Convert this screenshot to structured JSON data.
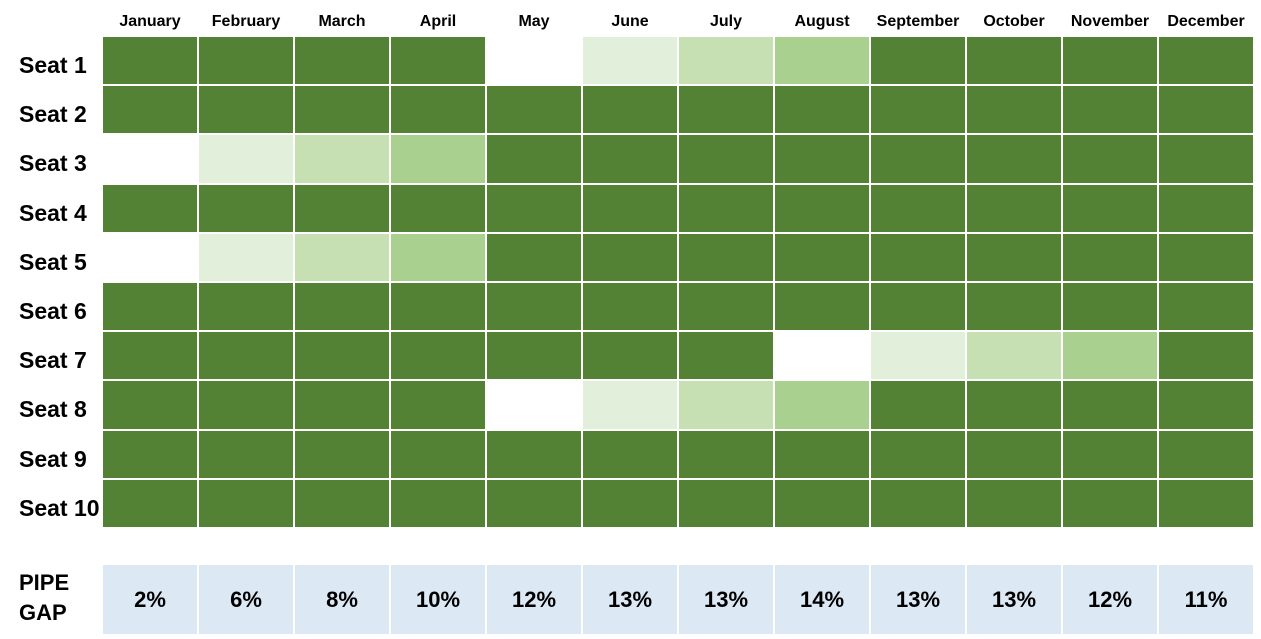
{
  "chart_data": {
    "type": "heatmap",
    "title": "",
    "columns": [
      "January",
      "February",
      "March",
      "April",
      "May",
      "June",
      "July",
      "August",
      "September",
      "October",
      "November",
      "December"
    ],
    "rows": [
      "Seat 1",
      "Seat 2",
      "Seat 3",
      "Seat 4",
      "Seat 5",
      "Seat 6",
      "Seat 7",
      "Seat 8",
      "Seat 9",
      "Seat 10"
    ],
    "levels": {
      "0": "#ffffff",
      "1": "#e2efda",
      "2": "#c6e0b4",
      "3": "#a9d08e",
      "4": "#548235"
    },
    "values": [
      [
        4,
        4,
        4,
        4,
        0,
        1,
        2,
        3,
        4,
        4,
        4,
        4
      ],
      [
        4,
        4,
        4,
        4,
        4,
        4,
        4,
        4,
        4,
        4,
        4,
        4
      ],
      [
        0,
        1,
        2,
        3,
        4,
        4,
        4,
        4,
        4,
        4,
        4,
        4
      ],
      [
        4,
        4,
        4,
        4,
        4,
        4,
        4,
        4,
        4,
        4,
        4,
        4
      ],
      [
        0,
        1,
        2,
        3,
        4,
        4,
        4,
        4,
        4,
        4,
        4,
        4
      ],
      [
        4,
        4,
        4,
        4,
        4,
        4,
        4,
        4,
        4,
        4,
        4,
        4
      ],
      [
        4,
        4,
        4,
        4,
        4,
        4,
        4,
        0,
        1,
        2,
        3,
        4
      ],
      [
        4,
        4,
        4,
        4,
        0,
        1,
        2,
        3,
        4,
        4,
        4,
        4
      ],
      [
        4,
        4,
        4,
        4,
        4,
        4,
        4,
        4,
        4,
        4,
        4,
        4
      ],
      [
        4,
        4,
        4,
        4,
        4,
        4,
        4,
        4,
        4,
        4,
        4,
        4
      ]
    ],
    "summary_row": {
      "label_lines": [
        "PIPE",
        "GAP"
      ],
      "values": [
        "2%",
        "6%",
        "8%",
        "10%",
        "12%",
        "13%",
        "13%",
        "14%",
        "13%",
        "13%",
        "12%",
        "11%"
      ],
      "color": "#dce9f5"
    }
  }
}
